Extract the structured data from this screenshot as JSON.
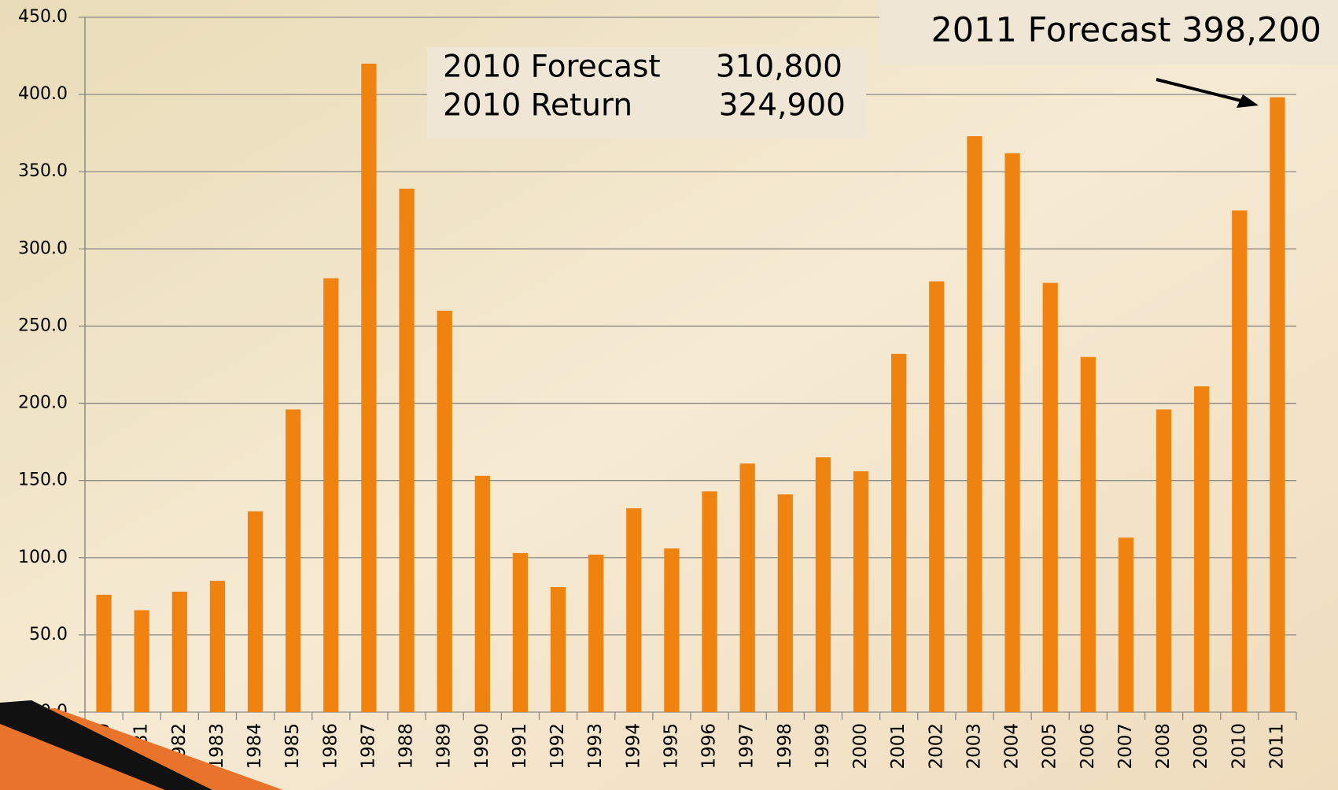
{
  "chart_data": {
    "type": "bar",
    "categories": [
      "1980",
      "1981",
      "1982",
      "1983",
      "1984",
      "1985",
      "1986",
      "1987",
      "1988",
      "1989",
      "1990",
      "1991",
      "1992",
      "1993",
      "1994",
      "1995",
      "1996",
      "1997",
      "1998",
      "1999",
      "2000",
      "2001",
      "2002",
      "2003",
      "2004",
      "2005",
      "2006",
      "2007",
      "2008",
      "2009",
      "2010",
      "2011"
    ],
    "values": [
      76,
      66,
      78,
      85,
      130,
      196,
      281,
      420,
      339,
      260,
      153,
      103,
      81,
      102,
      132,
      106,
      143,
      161,
      141,
      165,
      156,
      232,
      279,
      373,
      362,
      278,
      230,
      113,
      196,
      211,
      324.9,
      398.2
    ],
    "color": "#f0820f",
    "ylim": [
      0,
      450
    ],
    "yticks": [
      {
        "value": 0,
        "label": "0.0"
      },
      {
        "value": 50,
        "label": "50.0"
      },
      {
        "value": 100,
        "label": "100.0"
      },
      {
        "value": 150,
        "label": "150.0"
      },
      {
        "value": 200,
        "label": "200.0"
      },
      {
        "value": 250,
        "label": "250.0"
      },
      {
        "value": 300,
        "label": "300.0"
      },
      {
        "value": 350,
        "label": "350.0"
      },
      {
        "value": 400,
        "label": "400.0"
      },
      {
        "value": 450,
        "label": "450.0"
      }
    ],
    "grid": true,
    "annotations": [
      {
        "text": "2010 Forecast",
        "value": "310,800"
      },
      {
        "text": "2010 Return",
        "value": "324,900"
      },
      {
        "text": "2011 Forecast 398,200"
      }
    ]
  }
}
